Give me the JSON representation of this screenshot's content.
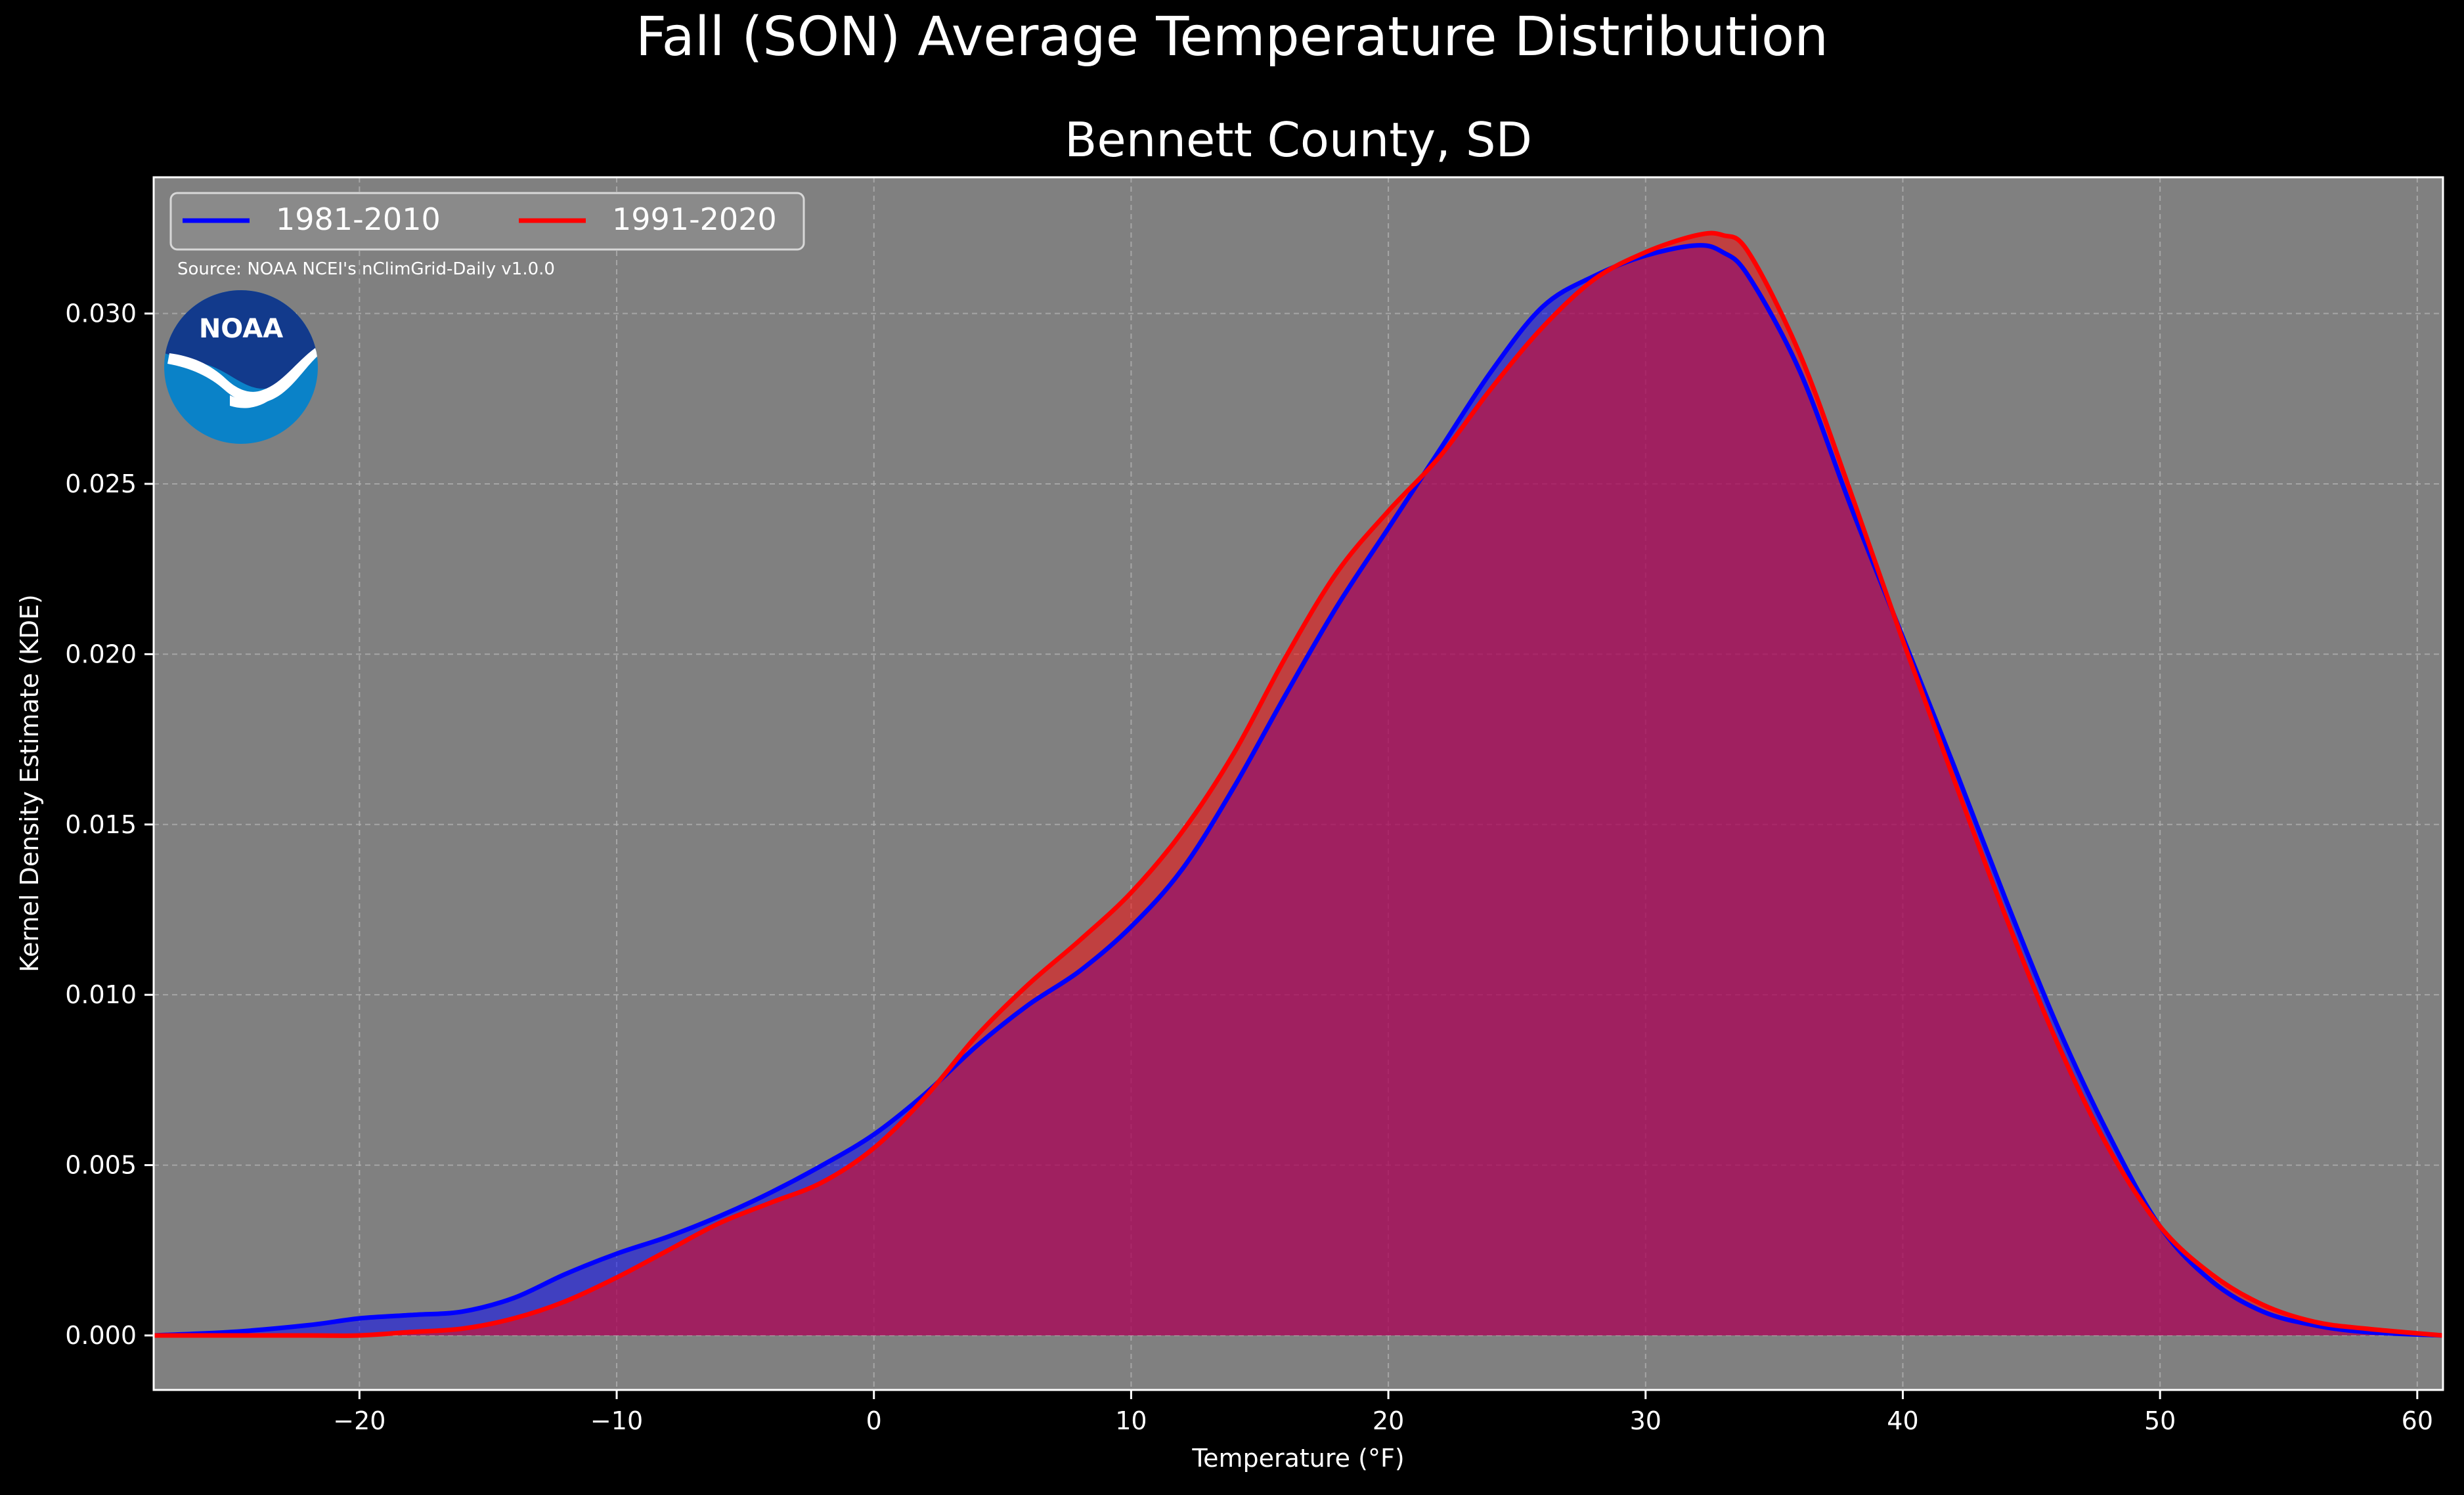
{
  "figure": {
    "suptitle": "Fall (SON) Average Temperature Distribution",
    "source": "Source: NOAA NCEI's nClimGrid-Daily v1.0.0",
    "logo_text": "NOAA",
    "background": "#000000",
    "axes_background": "#808080"
  },
  "chart_data": {
    "type": "area",
    "title": "Bennett County, SD",
    "xlabel": "Temperature (°F)",
    "ylabel": "Kernel Density Estimate (KDE)",
    "xlim": [
      -28,
      61
    ],
    "ylim": [
      -0.0016,
      0.034
    ],
    "xticks": [
      -20,
      -10,
      0,
      10,
      20,
      30,
      40,
      50,
      60
    ],
    "xtick_labels": [
      "−20",
      "−10",
      "0",
      "10",
      "20",
      "30",
      "40",
      "50",
      "60"
    ],
    "yticks": [
      0.0,
      0.005,
      0.01,
      0.015,
      0.02,
      0.025,
      0.03
    ],
    "ytick_labels": [
      "0.000",
      "0.005",
      "0.010",
      "0.015",
      "0.020",
      "0.025",
      "0.030"
    ],
    "grid": true,
    "legend": {
      "position": "top-left",
      "ncol": 2
    },
    "series": [
      {
        "name": "1981-2010",
        "color": "#0000ff",
        "x": [
          -28,
          -25,
          -22,
          -20,
          -18,
          -16,
          -14,
          -12,
          -10,
          -8,
          -6,
          -4,
          -2,
          0,
          2,
          4,
          6,
          8,
          10,
          12,
          14,
          16,
          18,
          20,
          22,
          24,
          26,
          28,
          30,
          32,
          33,
          34,
          36,
          38,
          40,
          42,
          44,
          46,
          48,
          50,
          52,
          54,
          56,
          58,
          61
        ],
        "y": [
          0.0,
          0.0001,
          0.0003,
          0.0005,
          0.0006,
          0.0007,
          0.0011,
          0.0018,
          0.0024,
          0.0029,
          0.0035,
          0.0042,
          0.005,
          0.0059,
          0.0071,
          0.0085,
          0.0097,
          0.0107,
          0.012,
          0.0137,
          0.0161,
          0.0188,
          0.0214,
          0.0237,
          0.026,
          0.0283,
          0.0302,
          0.0311,
          0.0317,
          0.032,
          0.0318,
          0.0311,
          0.0283,
          0.0243,
          0.0205,
          0.0167,
          0.0128,
          0.0091,
          0.0059,
          0.0032,
          0.0016,
          0.0007,
          0.0003,
          0.0001,
          0.0
        ]
      },
      {
        "name": "1991-2020",
        "color": "#ff0000",
        "x": [
          -28,
          -25,
          -22,
          -20,
          -18,
          -16,
          -14,
          -12,
          -10,
          -8,
          -6,
          -4,
          -2,
          0,
          2,
          4,
          6,
          8,
          10,
          12,
          14,
          16,
          18,
          20,
          22,
          24,
          26,
          28,
          30,
          32,
          33,
          34,
          36,
          38,
          40,
          42,
          44,
          46,
          48,
          50,
          52,
          54,
          56,
          58,
          61
        ],
        "y": [
          0.0,
          0.0,
          0.0,
          0.0,
          0.0001,
          0.0002,
          0.0005,
          0.001,
          0.0017,
          0.0025,
          0.0033,
          0.0039,
          0.0045,
          0.0055,
          0.007,
          0.0088,
          0.0103,
          0.0116,
          0.013,
          0.0148,
          0.0171,
          0.0199,
          0.0224,
          0.0242,
          0.0258,
          0.0278,
          0.0296,
          0.031,
          0.0318,
          0.0323,
          0.0323,
          0.0318,
          0.0288,
          0.0247,
          0.0204,
          0.0163,
          0.0123,
          0.0086,
          0.0055,
          0.0032,
          0.0018,
          0.0009,
          0.0004,
          0.0002,
          0.0
        ]
      }
    ]
  }
}
